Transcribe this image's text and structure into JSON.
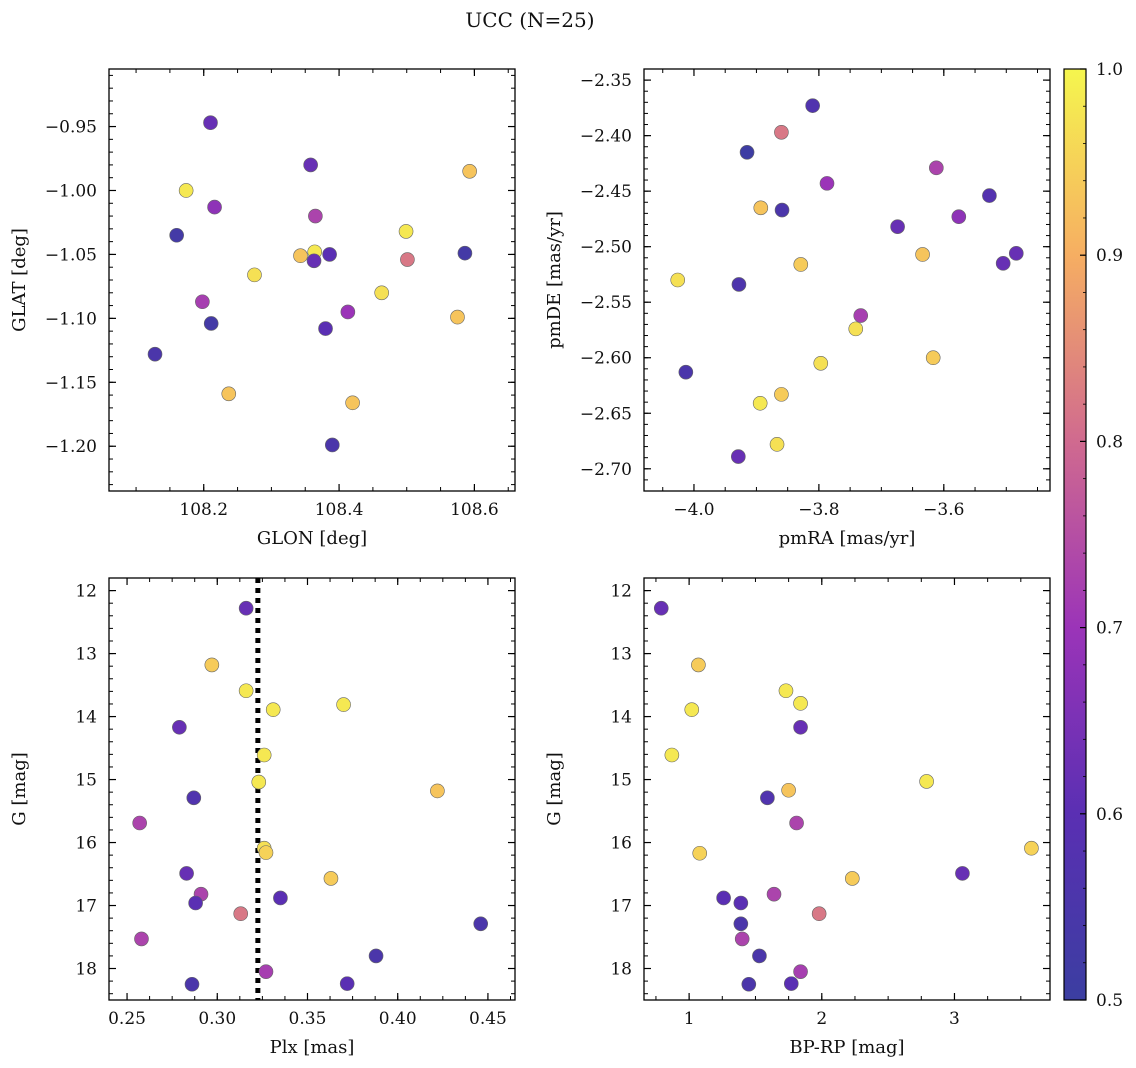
{
  "title": "UCC (N=25)",
  "colorbar": {
    "min": 0.5,
    "max": 1.0,
    "ticks": [
      "0.5",
      "0.6",
      "0.7",
      "0.8",
      "0.9",
      "1.0"
    ],
    "colormap": "plasma"
  },
  "chart_data": [
    {
      "type": "scatter",
      "name": "galactic",
      "xlabel": "GLON [deg]",
      "ylabel": "GLAT [deg]",
      "xlim": [
        108.06,
        108.66
      ],
      "ylim": [
        -1.235,
        -0.905
      ],
      "invert_y": false,
      "xticks": [
        "108.2",
        "108.4",
        "108.6"
      ],
      "yticks": [
        "−0.95",
        "−1.00",
        "−1.05",
        "−1.10",
        "−1.15",
        "−1.20"
      ],
      "points": [
        {
          "x": 108.21,
          "y": -0.947,
          "c": 0.62
        },
        {
          "x": 108.358,
          "y": -0.98,
          "c": 0.62
        },
        {
          "x": 108.593,
          "y": -0.985,
          "c": 0.93
        },
        {
          "x": 108.174,
          "y": -1.0,
          "c": 0.98
        },
        {
          "x": 108.216,
          "y": -1.013,
          "c": 0.68
        },
        {
          "x": 108.365,
          "y": -1.02,
          "c": 0.73
        },
        {
          "x": 108.499,
          "y": -1.032,
          "c": 0.98
        },
        {
          "x": 108.16,
          "y": -1.035,
          "c": 0.53
        },
        {
          "x": 108.586,
          "y": -1.049,
          "c": 0.53
        },
        {
          "x": 108.343,
          "y": -1.051,
          "c": 0.93
        },
        {
          "x": 108.364,
          "y": -1.048,
          "c": 0.98
        },
        {
          "x": 108.386,
          "y": -1.05,
          "c": 0.6
        },
        {
          "x": 108.501,
          "y": -1.054,
          "c": 0.82
        },
        {
          "x": 108.363,
          "y": -1.055,
          "c": 0.62
        },
        {
          "x": 108.275,
          "y": -1.066,
          "c": 0.97
        },
        {
          "x": 108.463,
          "y": -1.08,
          "c": 0.97
        },
        {
          "x": 108.198,
          "y": -1.087,
          "c": 0.72
        },
        {
          "x": 108.413,
          "y": -1.095,
          "c": 0.7
        },
        {
          "x": 108.575,
          "y": -1.099,
          "c": 0.93
        },
        {
          "x": 108.211,
          "y": -1.104,
          "c": 0.53
        },
        {
          "x": 108.38,
          "y": -1.108,
          "c": 0.6
        },
        {
          "x": 108.128,
          "y": -1.128,
          "c": 0.55
        },
        {
          "x": 108.237,
          "y": -1.159,
          "c": 0.93
        },
        {
          "x": 108.42,
          "y": -1.166,
          "c": 0.93
        },
        {
          "x": 108.39,
          "y": -1.199,
          "c": 0.55
        }
      ]
    },
    {
      "type": "scatter",
      "name": "proper-motion",
      "xlabel": "pmRA [mas/yr]",
      "ylabel": "pmDE [mas/yr]",
      "xlim": [
        -4.08,
        -3.43
      ],
      "ylim": [
        -2.72,
        -2.34
      ],
      "invert_y": false,
      "xticks": [
        "−4.0",
        "−3.8",
        "−3.6"
      ],
      "yticks": [
        "−2.35",
        "−2.40",
        "−2.45",
        "−2.50",
        "−2.55",
        "−2.60",
        "−2.65",
        "−2.70"
      ],
      "points": [
        {
          "x": -3.81,
          "y": -2.373,
          "c": 0.57
        },
        {
          "x": -3.86,
          "y": -2.397,
          "c": 0.82
        },
        {
          "x": -3.915,
          "y": -2.415,
          "c": 0.51
        },
        {
          "x": -3.612,
          "y": -2.429,
          "c": 0.73
        },
        {
          "x": -3.787,
          "y": -2.443,
          "c": 0.7
        },
        {
          "x": -3.527,
          "y": -2.454,
          "c": 0.58
        },
        {
          "x": -3.893,
          "y": -2.465,
          "c": 0.93
        },
        {
          "x": -3.859,
          "y": -2.467,
          "c": 0.55
        },
        {
          "x": -3.576,
          "y": -2.473,
          "c": 0.68
        },
        {
          "x": -3.674,
          "y": -2.482,
          "c": 0.62
        },
        {
          "x": -3.484,
          "y": -2.506,
          "c": 0.62
        },
        {
          "x": -3.634,
          "y": -2.507,
          "c": 0.93
        },
        {
          "x": -3.829,
          "y": -2.516,
          "c": 0.94
        },
        {
          "x": -3.505,
          "y": -2.515,
          "c": 0.62
        },
        {
          "x": -4.026,
          "y": -2.53,
          "c": 0.97
        },
        {
          "x": -3.928,
          "y": -2.534,
          "c": 0.56
        },
        {
          "x": -3.733,
          "y": -2.562,
          "c": 0.72
        },
        {
          "x": -3.741,
          "y": -2.574,
          "c": 0.97
        },
        {
          "x": -3.617,
          "y": -2.6,
          "c": 0.94
        },
        {
          "x": -3.797,
          "y": -2.605,
          "c": 0.97
        },
        {
          "x": -4.013,
          "y": -2.613,
          "c": 0.55
        },
        {
          "x": -3.86,
          "y": -2.633,
          "c": 0.94
        },
        {
          "x": -3.894,
          "y": -2.641,
          "c": 0.98
        },
        {
          "x": -3.867,
          "y": -2.678,
          "c": 0.97
        },
        {
          "x": -3.929,
          "y": -2.689,
          "c": 0.62
        }
      ]
    },
    {
      "type": "scatter",
      "name": "parallax-magnitude",
      "xlabel": "Plx [mas]",
      "ylabel": "G [mag]",
      "xlim": [
        0.24,
        0.465
      ],
      "ylim": [
        18.5,
        11.8
      ],
      "invert_y": true,
      "xticks": [
        "0.25",
        "0.30",
        "0.35",
        "0.40",
        "0.45"
      ],
      "yticks": [
        "12",
        "13",
        "14",
        "15",
        "16",
        "17",
        "18"
      ],
      "vline": 0.3225,
      "points": [
        {
          "x": 0.316,
          "y": 12.28,
          "c": 0.62
        },
        {
          "x": 0.297,
          "y": 13.18,
          "c": 0.94
        },
        {
          "x": 0.316,
          "y": 13.59,
          "c": 0.98
        },
        {
          "x": 0.37,
          "y": 13.81,
          "c": 0.98
        },
        {
          "x": 0.331,
          "y": 13.89,
          "c": 0.98
        },
        {
          "x": 0.279,
          "y": 14.17,
          "c": 0.62
        },
        {
          "x": 0.326,
          "y": 14.61,
          "c": 0.98
        },
        {
          "x": 0.323,
          "y": 15.04,
          "c": 0.98
        },
        {
          "x": 0.422,
          "y": 15.18,
          "c": 0.93
        },
        {
          "x": 0.287,
          "y": 15.29,
          "c": 0.57
        },
        {
          "x": 0.257,
          "y": 15.69,
          "c": 0.73
        },
        {
          "x": 0.326,
          "y": 16.09,
          "c": 0.97
        },
        {
          "x": 0.327,
          "y": 16.16,
          "c": 0.95
        },
        {
          "x": 0.363,
          "y": 16.57,
          "c": 0.94
        },
        {
          "x": 0.283,
          "y": 16.49,
          "c": 0.62
        },
        {
          "x": 0.291,
          "y": 16.82,
          "c": 0.73
        },
        {
          "x": 0.335,
          "y": 16.88,
          "c": 0.6
        },
        {
          "x": 0.288,
          "y": 16.96,
          "c": 0.6
        },
        {
          "x": 0.313,
          "y": 17.13,
          "c": 0.82
        },
        {
          "x": 0.446,
          "y": 17.29,
          "c": 0.55
        },
        {
          "x": 0.258,
          "y": 17.53,
          "c": 0.73
        },
        {
          "x": 0.388,
          "y": 17.8,
          "c": 0.55
        },
        {
          "x": 0.327,
          "y": 18.05,
          "c": 0.72
        },
        {
          "x": 0.286,
          "y": 18.25,
          "c": 0.55
        },
        {
          "x": 0.372,
          "y": 18.24,
          "c": 0.6
        }
      ]
    },
    {
      "type": "scatter",
      "name": "color-magnitude",
      "xlabel": "BP-RP [mag]",
      "ylabel": "G [mag]",
      "xlim": [
        0.66,
        3.72
      ],
      "ylim": [
        18.5,
        11.8
      ],
      "invert_y": true,
      "xticks": [
        "1",
        "2",
        "3"
      ],
      "yticks": [
        "12",
        "13",
        "14",
        "15",
        "16",
        "17",
        "18"
      ],
      "points": [
        {
          "x": 0.79,
          "y": 12.28,
          "c": 0.62
        },
        {
          "x": 1.07,
          "y": 13.18,
          "c": 0.94
        },
        {
          "x": 1.73,
          "y": 13.59,
          "c": 0.98
        },
        {
          "x": 1.84,
          "y": 13.79,
          "c": 0.98
        },
        {
          "x": 1.02,
          "y": 13.89,
          "c": 0.98
        },
        {
          "x": 1.84,
          "y": 14.17,
          "c": 0.62
        },
        {
          "x": 0.87,
          "y": 14.61,
          "c": 0.98
        },
        {
          "x": 2.79,
          "y": 15.03,
          "c": 0.98
        },
        {
          "x": 1.75,
          "y": 15.17,
          "c": 0.93
        },
        {
          "x": 1.59,
          "y": 15.29,
          "c": 0.57
        },
        {
          "x": 1.81,
          "y": 15.69,
          "c": 0.73
        },
        {
          "x": 3.58,
          "y": 16.09,
          "c": 0.95
        },
        {
          "x": 1.08,
          "y": 16.17,
          "c": 0.95
        },
        {
          "x": 2.23,
          "y": 16.57,
          "c": 0.94
        },
        {
          "x": 3.06,
          "y": 16.49,
          "c": 0.62
        },
        {
          "x": 1.64,
          "y": 16.82,
          "c": 0.73
        },
        {
          "x": 1.26,
          "y": 16.88,
          "c": 0.6
        },
        {
          "x": 1.39,
          "y": 16.96,
          "c": 0.6
        },
        {
          "x": 1.98,
          "y": 17.13,
          "c": 0.82
        },
        {
          "x": 1.39,
          "y": 17.29,
          "c": 0.55
        },
        {
          "x": 1.4,
          "y": 17.53,
          "c": 0.73
        },
        {
          "x": 1.53,
          "y": 17.8,
          "c": 0.55
        },
        {
          "x": 1.84,
          "y": 18.05,
          "c": 0.72
        },
        {
          "x": 1.45,
          "y": 18.25,
          "c": 0.55
        },
        {
          "x": 1.77,
          "y": 18.24,
          "c": 0.6
        }
      ]
    }
  ]
}
